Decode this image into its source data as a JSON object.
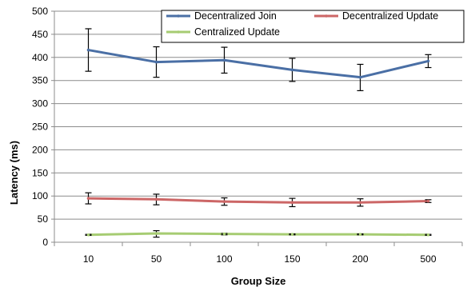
{
  "chart_data": {
    "type": "line",
    "title": "",
    "xlabel": "Group Size",
    "ylabel": "Latency (ms)",
    "categories": [
      "10",
      "50",
      "100",
      "150",
      "200",
      "500"
    ],
    "ylim": [
      0,
      500
    ],
    "yticks": [
      0,
      50,
      100,
      150,
      200,
      250,
      300,
      350,
      400,
      450,
      500
    ],
    "grid": true,
    "legend_position": "top-right",
    "series": [
      {
        "name": "Decentralized Join",
        "color": "#4a6fa5",
        "values": [
          416,
          390,
          394,
          373,
          357,
          392
        ],
        "error_low": [
          370,
          357,
          366,
          348,
          328,
          378
        ],
        "error_high": [
          462,
          423,
          422,
          398,
          385,
          406
        ]
      },
      {
        "name": "Decentralized Update",
        "color": "#cc6666",
        "values": [
          95,
          93,
          88,
          86,
          86,
          89
        ],
        "error_low": [
          83,
          81,
          80,
          77,
          78,
          86
        ],
        "error_high": [
          107,
          104,
          96,
          95,
          94,
          92
        ]
      },
      {
        "name": "Centralized Update",
        "color": "#a6cc72",
        "values": [
          16,
          19,
          18,
          17,
          17,
          16
        ],
        "error_low": [
          15,
          11,
          16,
          16,
          16,
          15
        ],
        "error_high": [
          17,
          25,
          19,
          18,
          18,
          17
        ]
      }
    ]
  }
}
